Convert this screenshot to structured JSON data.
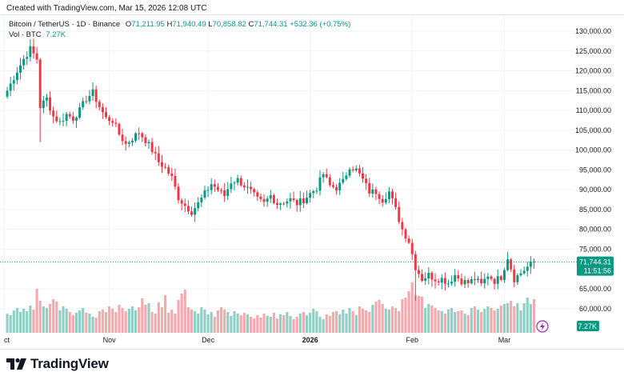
{
  "header": {
    "created": "Created with TradingView.com, Mar 15, 2026 12:08 UTC"
  },
  "legend": {
    "symbol": "Bitcoin / TetherUS · 1D · Binance",
    "o_label": "O",
    "o_value": "71,211.95",
    "h_label": "H",
    "h_value": "71,940.49",
    "l_label": "L",
    "l_value": "70,858.82",
    "c_label": "C",
    "c_value": "71,744.31",
    "change": "+532.36 (+0.75%)",
    "vol_label": "Vol · BTC",
    "vol_value": "7.27K"
  },
  "price_badge": {
    "price": "71,744.31",
    "countdown": "11:51:56"
  },
  "volume_badge": "7.27K",
  "footer": {
    "logo_text": "TradingView"
  },
  "colors": {
    "up": "#089981",
    "down": "#f23645",
    "vol_up": "#8fcfc4",
    "vol_down": "#f4a9ae",
    "grid": "#f0f3fa"
  },
  "chart_data": {
    "type": "candlestick",
    "y_ticks": [
      130000,
      125000,
      120000,
      115000,
      110000,
      105000,
      100000,
      95000,
      90000,
      85000,
      80000,
      75000,
      65000,
      60000
    ],
    "y_tick_labels": [
      "130,000.00",
      "125,000.00",
      "120,000.00",
      "115,000.00",
      "110,000.00",
      "105,000.00",
      "100,000.00",
      "95,000.00",
      "90,000.00",
      "85,000.00",
      "80,000.00",
      "75,000.00",
      "65,000.00",
      "60,000.00"
    ],
    "ylim": [
      58000,
      131500
    ],
    "x_ticks": [
      {
        "label": "ct",
        "day": -1,
        "bold": false
      },
      {
        "label": "Nov",
        "day": 31,
        "bold": false
      },
      {
        "label": "Dec",
        "day": 61,
        "bold": false
      },
      {
        "label": "2026",
        "day": 92,
        "bold": true
      },
      {
        "label": "Feb",
        "day": 123,
        "bold": false
      },
      {
        "label": "Mar",
        "day": 151,
        "bold": false
      }
    ],
    "last_price": 71744.31,
    "anchors": [
      [
        0,
        115000
      ],
      [
        3,
        120000
      ],
      [
        5,
        123000
      ],
      [
        7,
        125500
      ],
      [
        9,
        123000
      ],
      [
        10,
        111000
      ],
      [
        12,
        113000
      ],
      [
        14,
        108500
      ],
      [
        16,
        107000
      ],
      [
        18,
        109000
      ],
      [
        20,
        108000
      ],
      [
        22,
        110000
      ],
      [
        24,
        113000
      ],
      [
        26,
        114500
      ],
      [
        28,
        111000
      ],
      [
        30,
        108000
      ],
      [
        32,
        107500
      ],
      [
        34,
        104000
      ],
      [
        36,
        101500
      ],
      [
        38,
        103000
      ],
      [
        40,
        104500
      ],
      [
        42,
        102500
      ],
      [
        44,
        100000
      ],
      [
        46,
        97000
      ],
      [
        48,
        95500
      ],
      [
        50,
        93000
      ],
      [
        52,
        88000
      ],
      [
        54,
        86000
      ],
      [
        56,
        84500
      ],
      [
        58,
        86500
      ],
      [
        60,
        89000
      ],
      [
        62,
        91500
      ],
      [
        64,
        90000
      ],
      [
        66,
        88500
      ],
      [
        68,
        92000
      ],
      [
        70,
        92500
      ],
      [
        72,
        91000
      ],
      [
        74,
        89500
      ],
      [
        76,
        87500
      ],
      [
        78,
        86500
      ],
      [
        80,
        88500
      ],
      [
        82,
        86500
      ],
      [
        84,
        87000
      ],
      [
        86,
        87500
      ],
      [
        88,
        86500
      ],
      [
        90,
        87500
      ],
      [
        92,
        89000
      ],
      [
        94,
        90500
      ],
      [
        96,
        94000
      ],
      [
        98,
        91000
      ],
      [
        100,
        90500
      ],
      [
        102,
        92000
      ],
      [
        104,
        96000
      ],
      [
        106,
        95000
      ],
      [
        108,
        92500
      ],
      [
        110,
        89500
      ],
      [
        112,
        89500
      ],
      [
        114,
        87500
      ],
      [
        116,
        89500
      ],
      [
        118,
        85000
      ],
      [
        120,
        80000
      ],
      [
        122,
        77000
      ],
      [
        124,
        70500
      ],
      [
        126,
        67500
      ],
      [
        128,
        68500
      ],
      [
        130,
        67500
      ],
      [
        132,
        67500
      ],
      [
        134,
        66500
      ],
      [
        136,
        68500
      ],
      [
        138,
        67000
      ],
      [
        140,
        66500
      ],
      [
        142,
        67500
      ],
      [
        144,
        66000
      ],
      [
        146,
        68500
      ],
      [
        148,
        67000
      ],
      [
        150,
        68000
      ],
      [
        152,
        73000
      ],
      [
        154,
        67500
      ],
      [
        156,
        69000
      ],
      [
        158,
        70500
      ],
      [
        160,
        71750
      ]
    ],
    "volumes": [
      24,
      22,
      28,
      31,
      26,
      30,
      27,
      34,
      29,
      55,
      40,
      33,
      31,
      36,
      42,
      39,
      28,
      33,
      30,
      26,
      22,
      25,
      28,
      31,
      25,
      24,
      20,
      19,
      27,
      29,
      26,
      33,
      30,
      26,
      35,
      31,
      27,
      30,
      33,
      28,
      32,
      43,
      35,
      37,
      26,
      24,
      38,
      32,
      47,
      25,
      29,
      24,
      41,
      49,
      54,
      32,
      29,
      27,
      24,
      32,
      29,
      23,
      26,
      20,
      28,
      32,
      29,
      26,
      21,
      27,
      24,
      22,
      25,
      23,
      20,
      18,
      22,
      19,
      24,
      21,
      20,
      25,
      18,
      23,
      22,
      26,
      21,
      17,
      20,
      24,
      26,
      22,
      25,
      30,
      27,
      20,
      17,
      23,
      21,
      26,
      27,
      23,
      29,
      24,
      31,
      27,
      22,
      33,
      30,
      28,
      26,
      35,
      39,
      41,
      36,
      30,
      29,
      33,
      31,
      27,
      42,
      44,
      52,
      63,
      47,
      46,
      45,
      31,
      36,
      34,
      31,
      28,
      27,
      24,
      29,
      31,
      26,
      27,
      28,
      24,
      22,
      31,
      33,
      29,
      26,
      30,
      33,
      31,
      28,
      30,
      34,
      36,
      37,
      40,
      33,
      37,
      28,
      37,
      44,
      36,
      42,
      45,
      49,
      44,
      37
    ]
  }
}
